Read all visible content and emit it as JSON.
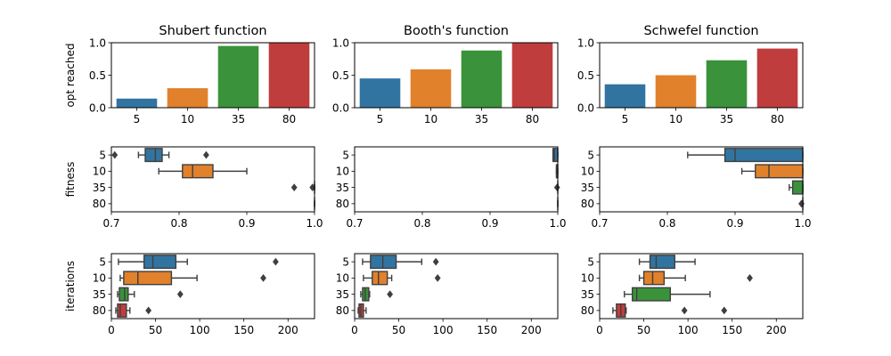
{
  "chart_data": [
    {
      "type": "bar",
      "title": "Shubert function",
      "ylabel": "opt reached",
      "categories": [
        "5",
        "10",
        "35",
        "80"
      ],
      "values": [
        0.14,
        0.3,
        0.95,
        1.0
      ],
      "ylim": [
        0,
        1.0
      ],
      "yticks": [
        "0.0",
        "0.5",
        "1.0"
      ]
    },
    {
      "type": "bar",
      "title": "Booth's function",
      "ylabel": "",
      "categories": [
        "5",
        "10",
        "35",
        "80"
      ],
      "values": [
        0.45,
        0.59,
        0.88,
        1.0
      ],
      "ylim": [
        0,
        1.0
      ],
      "yticks": [
        "0.0",
        "0.5",
        "1.0"
      ]
    },
    {
      "type": "bar",
      "title": "Schwefel function",
      "ylabel": "",
      "categories": [
        "5",
        "10",
        "35",
        "80"
      ],
      "values": [
        0.36,
        0.5,
        0.73,
        0.91
      ],
      "ylim": [
        0,
        1.0
      ],
      "yticks": [
        "0.0",
        "0.5",
        "1.0"
      ]
    },
    {
      "type": "box",
      "ylabel": "fitness",
      "categories": [
        "5",
        "10",
        "35",
        "80"
      ],
      "xlim": [
        0.7,
        1.0
      ],
      "xticks": [
        "0.7",
        "0.8",
        "0.9",
        "1.0"
      ],
      "boxes": [
        {
          "whislo": 0.74,
          "q1": 0.75,
          "med": 0.765,
          "q3": 0.775,
          "whishi": 0.785,
          "fliers": [
            0.705,
            0.84
          ]
        },
        {
          "whislo": 0.77,
          "q1": 0.805,
          "med": 0.82,
          "q3": 0.85,
          "whishi": 0.9,
          "fliers": []
        },
        {
          "whislo": 1.0,
          "q1": 1.0,
          "med": 1.0,
          "q3": 1.0,
          "whishi": 1.0,
          "fliers": [
            0.97,
            0.997
          ]
        },
        {
          "whislo": 1.0,
          "q1": 1.0,
          "med": 1.0,
          "q3": 1.0,
          "whishi": 1.0,
          "fliers": []
        }
      ]
    },
    {
      "type": "box",
      "ylabel": "",
      "categories": [
        "5",
        "10",
        "35",
        "80"
      ],
      "xlim": [
        0.7,
        1.0
      ],
      "xticks": [
        "0.7",
        "0.8",
        "0.9",
        "1.0"
      ],
      "boxes": [
        {
          "whislo": 0.993,
          "q1": 0.993,
          "med": 0.995,
          "q3": 1.0,
          "whishi": 1.0,
          "fliers": []
        },
        {
          "whislo": 0.998,
          "q1": 0.998,
          "med": 0.999,
          "q3": 1.0,
          "whishi": 1.0,
          "fliers": []
        },
        {
          "whislo": 1.0,
          "q1": 1.0,
          "med": 1.0,
          "q3": 1.0,
          "whishi": 1.0,
          "fliers": [
            0.999
          ]
        },
        {
          "whislo": 1.0,
          "q1": 1.0,
          "med": 1.0,
          "q3": 1.0,
          "whishi": 1.0,
          "fliers": []
        }
      ]
    },
    {
      "type": "box",
      "ylabel": "",
      "categories": [
        "5",
        "10",
        "35",
        "80"
      ],
      "xlim": [
        0.7,
        1.0
      ],
      "xticks": [
        "0.7",
        "0.8",
        "0.9",
        "1.0"
      ],
      "boxes": [
        {
          "whislo": 0.83,
          "q1": 0.885,
          "med": 0.9,
          "q3": 1.0,
          "whishi": 1.0,
          "fliers": []
        },
        {
          "whislo": 0.91,
          "q1": 0.93,
          "med": 0.95,
          "q3": 1.0,
          "whishi": 1.0,
          "fliers": []
        },
        {
          "whislo": 0.98,
          "q1": 0.985,
          "med": 1.0,
          "q3": 1.0,
          "whishi": 1.0,
          "fliers": []
        },
        {
          "whislo": 1.0,
          "q1": 1.0,
          "med": 1.0,
          "q3": 1.0,
          "whishi": 1.0,
          "fliers": [
            0.998
          ]
        }
      ]
    },
    {
      "type": "box",
      "ylabel": "iterations",
      "categories": [
        "5",
        "10",
        "35",
        "80"
      ],
      "xlim": [
        0,
        230
      ],
      "xticks": [
        "0",
        "50",
        "100",
        "150",
        "200"
      ],
      "xtick_values": [
        0,
        50,
        100,
        150,
        200
      ],
      "boxes": [
        {
          "whislo": 8,
          "q1": 37,
          "med": 47,
          "q3": 73,
          "whishi": 86,
          "fliers": [
            186
          ]
        },
        {
          "whislo": 10,
          "q1": 14,
          "med": 30,
          "q3": 68,
          "whishi": 97,
          "fliers": [
            172
          ]
        },
        {
          "whislo": 7,
          "q1": 9,
          "med": 15,
          "q3": 19,
          "whishi": 26,
          "fliers": [
            78
          ]
        },
        {
          "whislo": 5,
          "q1": 7,
          "med": 10,
          "q3": 17,
          "whishi": 21,
          "fliers": [
            42
          ]
        }
      ]
    },
    {
      "type": "box",
      "ylabel": "",
      "categories": [
        "5",
        "10",
        "35",
        "80"
      ],
      "xlim": [
        0,
        230
      ],
      "xticks": [
        "0",
        "50",
        "100",
        "150",
        "200"
      ],
      "xtick_values": [
        0,
        50,
        100,
        150,
        200
      ],
      "boxes": [
        {
          "whislo": 9,
          "q1": 18,
          "med": 32,
          "q3": 47,
          "whishi": 76,
          "fliers": [
            92
          ]
        },
        {
          "whislo": 10,
          "q1": 20,
          "med": 27,
          "q3": 37,
          "whishi": 42,
          "fliers": [
            94
          ]
        },
        {
          "whislo": 7,
          "q1": 9,
          "med": 12,
          "q3": 16,
          "whishi": 17,
          "fliers": [
            40
          ]
        },
        {
          "whislo": 4,
          "q1": 5,
          "med": 7,
          "q3": 10,
          "whishi": 13,
          "fliers": []
        }
      ]
    },
    {
      "type": "box",
      "ylabel": "",
      "categories": [
        "5",
        "10",
        "35",
        "80"
      ],
      "xlim": [
        0,
        230
      ],
      "xticks": [
        "0",
        "50",
        "100",
        "150",
        "200"
      ],
      "xtick_values": [
        0,
        50,
        100,
        150,
        200
      ],
      "boxes": [
        {
          "whislo": 45,
          "q1": 57,
          "med": 64,
          "q3": 85,
          "whishi": 108,
          "fliers": []
        },
        {
          "whislo": 45,
          "q1": 50,
          "med": 60,
          "q3": 73,
          "whishi": 97,
          "fliers": [
            170
          ]
        },
        {
          "whislo": 28,
          "q1": 37,
          "med": 42,
          "q3": 80,
          "whishi": 125,
          "fliers": []
        },
        {
          "whislo": 15,
          "q1": 19,
          "med": 24,
          "q3": 29,
          "whishi": 30,
          "fliers": [
            96,
            141
          ]
        }
      ]
    }
  ],
  "colors": {
    "palette": [
      "#3274a1",
      "#e1812c",
      "#3a923a",
      "#c03d3e"
    ],
    "edge": "#3f3f3f"
  }
}
